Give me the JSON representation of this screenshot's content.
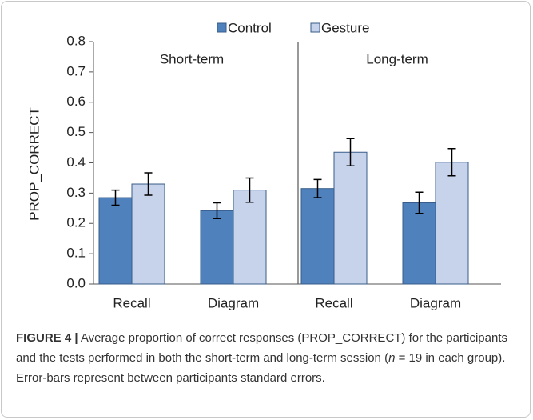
{
  "chart_data": {
    "type": "bar",
    "y_label": "PROP_CORRECT",
    "groups": [
      "Short-term",
      "Long-term"
    ],
    "categories": [
      "Recall",
      "Diagram",
      "Recall",
      "Diagram"
    ],
    "series": [
      {
        "name": "Control",
        "color": "#4f81bd",
        "values": [
          0.285,
          0.242,
          0.315,
          0.268
        ],
        "errors": [
          0.025,
          0.026,
          0.03,
          0.035
        ]
      },
      {
        "name": "Gesture",
        "color": "#c6d3ea",
        "values": [
          0.33,
          0.31,
          0.435,
          0.402
        ],
        "errors": [
          0.037,
          0.04,
          0.045,
          0.045
        ]
      }
    ],
    "ylim": [
      0,
      0.8
    ],
    "yticks": [
      {
        "value": 0,
        "label": "0.0"
      },
      0.1,
      0.2,
      0.3,
      0.4,
      0.5,
      0.6,
      0.7,
      0.8
    ]
  },
  "caption": {
    "label": "FIGURE 4 |",
    "text": " Average proportion of correct responses (PROP_CORRECT) for the participants and the tests performed in both the short-term and long-term session (",
    "variable": "n",
    "rest": " = 19 in each group). Error-bars represent between participants standard errors."
  }
}
